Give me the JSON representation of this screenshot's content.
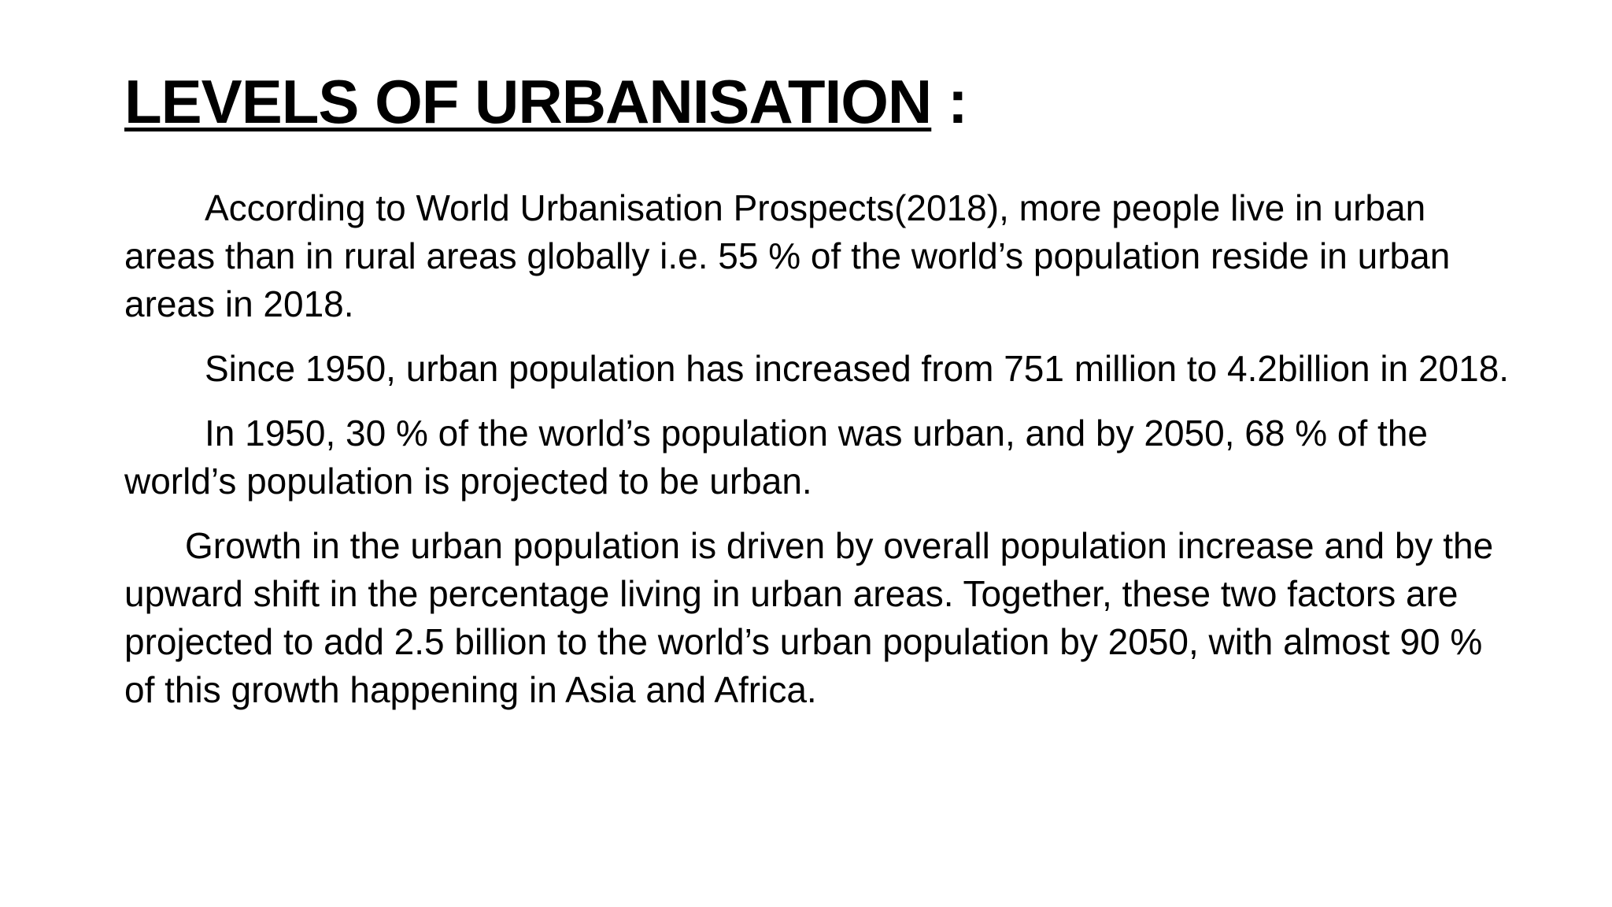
{
  "slide": {
    "title": "LEVELS OF URBANISATION",
    "title_suffix": " :",
    "paragraphs": [
      "According to World Urbanisation Prospects(2018), more people live in urban areas than in rural areas globally i.e. 55 % of the world’s population reside in urban areas in 2018.",
      "Since 1950, urban population has increased from 751 million to 4.2billion in 2018.",
      "In 1950, 30 % of the world’s population was urban, and by 2050, 68 % of the world’s population is projected to be urban.",
      "Growth in the urban population is driven by overall population increase and by the upward shift in the percentage living in urban areas. Together, these two factors are projected to add 2.5 billion to the world’s urban population by 2050, with almost 90 % of this growth happening in Asia and Africa."
    ]
  }
}
